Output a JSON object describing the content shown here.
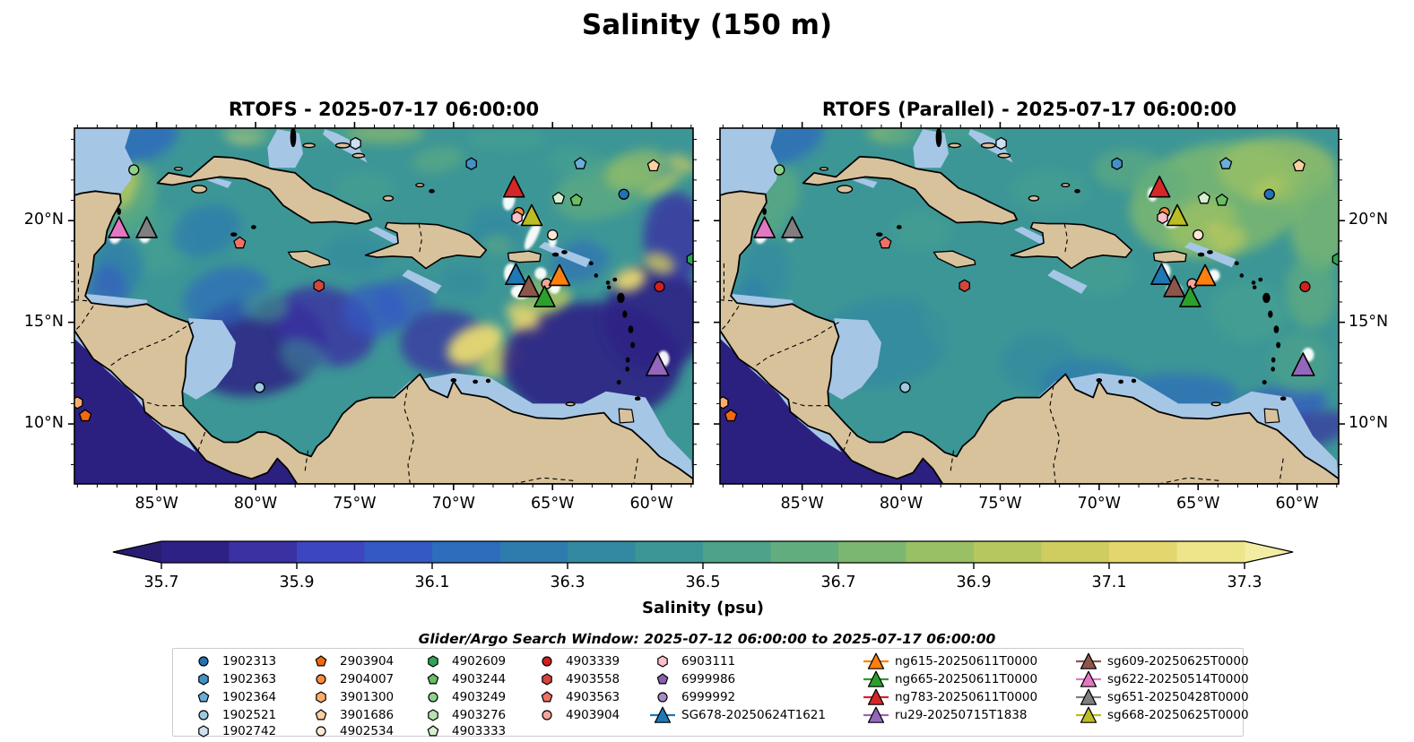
{
  "title": "Salinity (150 m)",
  "panels": [
    {
      "title": "RTOFS - 2025-07-17 06:00:00"
    },
    {
      "title": "RTOFS (Parallel) - 2025-07-17 06:00:00"
    }
  ],
  "axes": {
    "lon_tick_values": [
      85,
      80,
      75,
      70,
      65,
      60
    ],
    "lon_tick_labels": [
      "85°W",
      "80°W",
      "75°W",
      "70°W",
      "65°W",
      "60°W"
    ],
    "lat_tick_values": [
      20,
      15,
      10
    ],
    "lat_tick_labels": [
      "20°N",
      "15°N",
      "10°N"
    ]
  },
  "colorbar": {
    "label": "Salinity (psu)",
    "tick_labels": [
      "35.7",
      "35.9",
      "36.1",
      "36.3",
      "36.5",
      "36.7",
      "36.9",
      "37.1",
      "37.3"
    ],
    "tick_values": [
      35.7,
      35.9,
      36.1,
      36.3,
      36.5,
      36.7,
      36.9,
      37.1,
      37.3
    ],
    "segment_colors": [
      "#2e2185",
      "#3a31a3",
      "#3c46c0",
      "#3459c4",
      "#2e6cbc",
      "#2e7cae",
      "#3389a2",
      "#3d9696",
      "#4da28a",
      "#62ad7e",
      "#7cb771",
      "#99c065",
      "#b6c75e",
      "#d0cd60",
      "#e3d66e",
      "#eee489"
    ],
    "arrow_low_color": "#281d72",
    "arrow_high_color": "#f3eda4"
  },
  "search_window": "Glider/Argo Search Window: 2025-07-12 06:00:00 to 2025-07-17 06:00:00",
  "legend": {
    "columns": [
      [
        {
          "id": "1902313",
          "shape": "circle",
          "color": "#2171b5"
        },
        {
          "id": "1902363",
          "shape": "hexagon",
          "color": "#4292c6"
        },
        {
          "id": "1902364",
          "shape": "pentagon",
          "color": "#6baed6"
        },
        {
          "id": "1902521",
          "shape": "circle",
          "color": "#9ecae1"
        },
        {
          "id": "1902742",
          "shape": "hexagon",
          "color": "#cde0f1"
        }
      ],
      [
        {
          "id": "2903904",
          "shape": "pentagon",
          "color": "#f16913"
        },
        {
          "id": "2904007",
          "shape": "circle",
          "color": "#fd8d3c"
        },
        {
          "id": "3901300",
          "shape": "hexagon",
          "color": "#fdae6b"
        },
        {
          "id": "3901686",
          "shape": "pentagon",
          "color": "#fdd0a2"
        },
        {
          "id": "4902534",
          "shape": "circle",
          "color": "#fee9d6"
        }
      ],
      [
        {
          "id": "4902609",
          "shape": "hexagon",
          "color": "#31a354"
        },
        {
          "id": "4903244",
          "shape": "pentagon",
          "color": "#69bd63"
        },
        {
          "id": "4903249",
          "shape": "circle",
          "color": "#8fd08a"
        },
        {
          "id": "4903276",
          "shape": "hexagon",
          "color": "#b7e2b1"
        },
        {
          "id": "4903333",
          "shape": "pentagon",
          "color": "#d5efd0"
        }
      ],
      [
        {
          "id": "4903339",
          "shape": "circle",
          "color": "#d0201f"
        },
        {
          "id": "4903558",
          "shape": "hexagon",
          "color": "#d6453c"
        },
        {
          "id": "4903563",
          "shape": "pentagon",
          "color": "#ef7164"
        },
        {
          "id": "4903904",
          "shape": "circle",
          "color": "#f7a49c"
        }
      ],
      [
        {
          "id": "6903111",
          "shape": "hexagon",
          "color": "#fbbfc9"
        },
        {
          "id": "6999986",
          "shape": "pentagon",
          "color": "#8762ac"
        },
        {
          "id": "6999992",
          "shape": "circle",
          "color": "#a98bc9"
        },
        {
          "id": "SG678-20250624T1621",
          "shape": "triangle",
          "color": "#1f77b4",
          "line": true
        }
      ],
      [
        {
          "id": "ng615-20250611T0000",
          "shape": "triangle",
          "color": "#ff7f0e",
          "line": true
        },
        {
          "id": "ng665-20250611T0000",
          "shape": "triangle",
          "color": "#2ca02c",
          "line": true
        },
        {
          "id": "ng783-20250611T0000",
          "shape": "triangle",
          "color": "#d62728",
          "line": true
        },
        {
          "id": "ru29-20250715T1838",
          "shape": "triangle",
          "color": "#9467bd",
          "line": true
        }
      ],
      [
        {
          "id": "sg609-20250625T0000",
          "shape": "triangle",
          "color": "#8c564b",
          "line": true
        },
        {
          "id": "sg622-20250514T0000",
          "shape": "triangle",
          "color": "#e377c2",
          "line": true
        },
        {
          "id": "sg651-20250428T0000",
          "shape": "triangle",
          "color": "#7f7f7f",
          "line": true
        },
        {
          "id": "sg668-20250625T0000",
          "shape": "triangle",
          "color": "#bcbd22",
          "line": true
        }
      ]
    ]
  },
  "chart_data": {
    "type": "heatmap",
    "title": "Salinity (150 m)",
    "panels": [
      "RTOFS - 2025-07-17 06:00:00",
      "RTOFS (Parallel) - 2025-07-17 06:00:00"
    ],
    "variable": "Salinity (psu)",
    "colorbar_range": [
      35.6,
      37.4
    ],
    "colorbar_ticks": [
      35.7,
      35.9,
      36.1,
      36.3,
      36.5,
      36.7,
      36.9,
      37.1,
      37.3
    ],
    "map_extent": {
      "lon_west": 89.15,
      "lon_east": 57.9,
      "lat_north": 24.55,
      "lat_south": 7.05
    },
    "platform_positions": [
      {
        "id": "1902313",
        "lon_w": 61.4,
        "lat_n": 21.3
      },
      {
        "id": "1902363",
        "lon_w": 69.1,
        "lat_n": 22.8
      },
      {
        "id": "1902364",
        "lon_w": 63.6,
        "lat_n": 22.8
      },
      {
        "id": "1902521",
        "lon_w": 79.8,
        "lat_n": 11.8
      },
      {
        "id": "1902742",
        "lon_w": 74.95,
        "lat_n": 23.8
      },
      {
        "id": "2903904",
        "lon_w": 88.6,
        "lat_n": 10.4
      },
      {
        "id": "2904007",
        "lon_w": 66.7,
        "lat_n": 20.4
      },
      {
        "id": "3901300",
        "lon_w": 89.0,
        "lat_n": 11.05
      },
      {
        "id": "3901686",
        "lon_w": 59.9,
        "lat_n": 22.7
      },
      {
        "id": "4902534",
        "lon_w": 65.0,
        "lat_n": 19.3
      },
      {
        "id": "4902609",
        "lon_w": 57.95,
        "lat_n": 18.1
      },
      {
        "id": "4903244",
        "lon_w": 63.8,
        "lat_n": 21.0
      },
      {
        "id": "4903249",
        "lon_w": 86.15,
        "lat_n": 22.5
      },
      {
        "id": "4903333",
        "lon_w": 64.7,
        "lat_n": 21.1
      },
      {
        "id": "4903339",
        "lon_w": 59.6,
        "lat_n": 16.75
      },
      {
        "id": "4903558",
        "lon_w": 76.8,
        "lat_n": 16.8
      },
      {
        "id": "4903563",
        "lon_w": 80.8,
        "lat_n": 18.9
      },
      {
        "id": "4903904",
        "lon_w": 65.3,
        "lat_n": 16.9
      },
      {
        "id": "6903111",
        "lon_w": 66.8,
        "lat_n": 20.15
      },
      {
        "id": "SG678-20250624T1621",
        "lon_w": 66.85,
        "lat_n": 17.3
      },
      {
        "id": "ng615-20250611T0000",
        "lon_w": 64.65,
        "lat_n": 17.25
      },
      {
        "id": "ng665-20250611T0000",
        "lon_w": 65.4,
        "lat_n": 16.2
      },
      {
        "id": "ng783-20250611T0000",
        "lon_w": 66.95,
        "lat_n": 21.6
      },
      {
        "id": "ru29-20250715T1838",
        "lon_w": 59.7,
        "lat_n": 12.85
      },
      {
        "id": "sg609-20250625T0000",
        "lon_w": 66.2,
        "lat_n": 16.7
      },
      {
        "id": "sg622-20250514T0000",
        "lon_w": 86.9,
        "lat_n": 19.6
      },
      {
        "id": "sg651-20250428T0000",
        "lon_w": 85.5,
        "lat_n": 19.6
      },
      {
        "id": "sg668-20250625T0000",
        "lon_w": 66.05,
        "lat_n": 20.2
      }
    ]
  }
}
